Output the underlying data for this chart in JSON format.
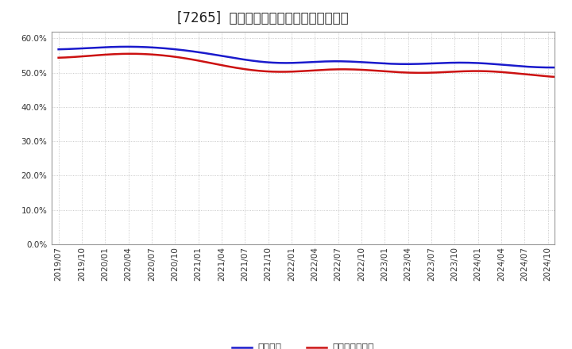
{
  "title": "[7265]  固定比率、固定長期適合率の推移",
  "series": {
    "固定比率": {
      "color": "#1a1acc",
      "values": [
        56.5,
        57.0,
        57.5,
        58.0,
        57.5,
        57.0,
        56.2,
        55.0,
        53.5,
        52.5,
        52.0,
        53.5,
        54.0,
        53.0,
        52.5,
        52.0,
        52.5,
        53.5,
        53.0,
        52.5,
        51.5,
        51.0,
        51.5,
        52.0,
        52.2,
        52.5,
        52.5,
        52.0,
        51.0,
        47.5,
        48.0,
        50.5,
        51.0,
        50.5,
        50.0,
        50.0,
        49.5,
        49.0,
        49.5,
        49.0
      ]
    },
    "固定長期適合率": {
      "color": "#cc1111",
      "values": [
        54.0,
        54.5,
        55.5,
        56.0,
        55.5,
        55.0,
        53.8,
        52.0,
        50.5,
        50.0,
        49.5,
        51.0,
        51.5,
        51.0,
        50.5,
        49.5,
        49.5,
        50.5,
        51.0,
        50.5,
        49.5,
        48.5,
        48.5,
        48.0,
        48.5,
        49.0,
        49.0,
        49.5,
        48.5,
        45.0,
        46.5,
        48.0,
        48.0,
        48.0,
        47.5,
        47.0,
        47.0,
        46.5,
        47.0,
        46.5
      ]
    }
  },
  "x_labels": [
    "2019/07",
    "2019/10",
    "2020/01",
    "2020/04",
    "2020/07",
    "2020/10",
    "2021/01",
    "2021/04",
    "2021/07",
    "2021/10",
    "2022/01",
    "2022/04",
    "2022/07",
    "2022/10",
    "2023/01",
    "2023/04",
    "2023/07",
    "2023/10",
    "2024/01",
    "2024/04",
    "2024/07",
    "2024/10"
  ],
  "ylim": [
    0.0,
    62.0
  ],
  "yticks": [
    0.0,
    10.0,
    20.0,
    30.0,
    40.0,
    50.0,
    60.0
  ],
  "background_color": "#ffffff",
  "plot_bg_color": "#ffffff",
  "grid_color": "#bbbbbb",
  "title_fontsize": 12,
  "legend_fontsize": 9,
  "tick_fontsize": 7.5
}
